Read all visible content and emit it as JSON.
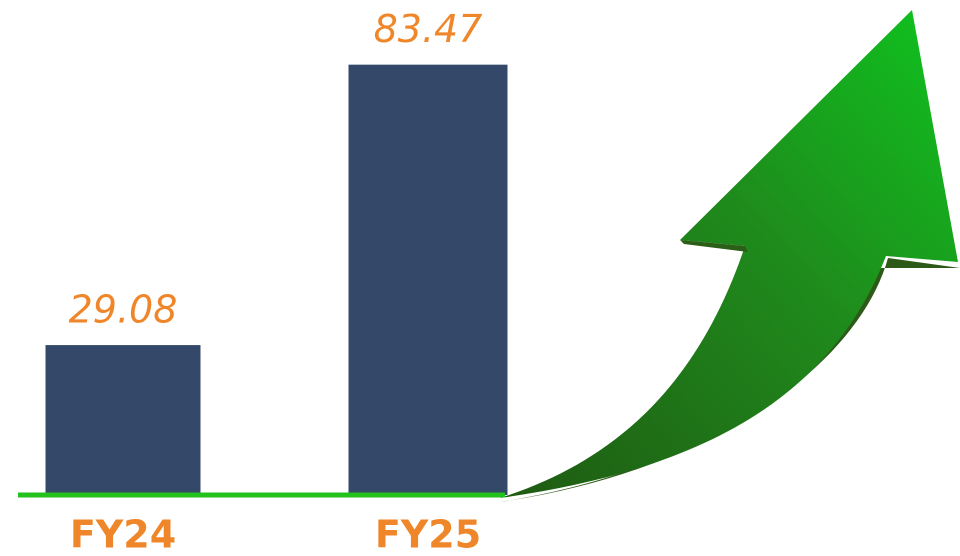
{
  "chart_data": {
    "type": "bar",
    "categories": [
      "FY24",
      "FY25"
    ],
    "values": [
      29.08,
      83.47
    ],
    "color": "#34486a",
    "ylim": [
      0,
      90
    ],
    "axis_color": "#22c11e"
  }
}
